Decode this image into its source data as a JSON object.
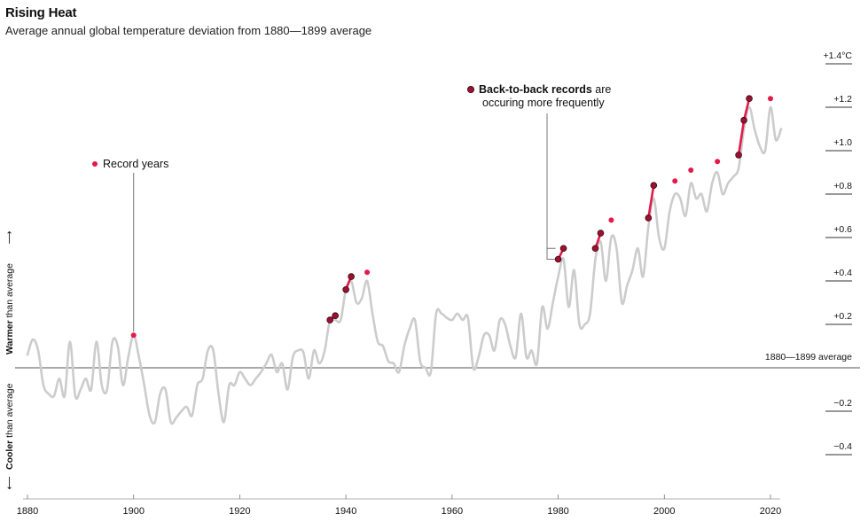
{
  "chart_data": {
    "type": "line",
    "title": "Rising Heat",
    "subtitle": "Average annual global temperature deviation from 1880—1899 average",
    "xlabel": "",
    "ylabel": "",
    "xlim": [
      1878,
      2024
    ],
    "ylim": [
      -0.55,
      1.45
    ],
    "x_ticks": [
      1880,
      1900,
      1920,
      1940,
      1960,
      1980,
      2000,
      2020
    ],
    "y_ticks": [
      {
        "value": 1.4,
        "label": "+1.4°C"
      },
      {
        "value": 1.2,
        "label": "+1.2"
      },
      {
        "value": 1.0,
        "label": "+1.0"
      },
      {
        "value": 0.8,
        "label": "+0.8"
      },
      {
        "value": 0.6,
        "label": "+0.6"
      },
      {
        "value": 0.4,
        "label": "+0.4"
      },
      {
        "value": 0.2,
        "label": "+0.2"
      },
      {
        "value": -0.2,
        "label": "−0.2"
      },
      {
        "value": -0.4,
        "label": "−0.4"
      }
    ],
    "baseline": {
      "value": 0,
      "label": "1880—1899 average"
    },
    "side_labels": {
      "warmer_bold": "Warmer",
      "warmer_rest": " than average",
      "cooler_bold": "Cooler",
      "cooler_rest": " than average"
    },
    "series": [
      {
        "x": [
          1880,
          1881,
          1882,
          1883,
          1884,
          1885,
          1886,
          1887,
          1888,
          1889,
          1890,
          1891,
          1892,
          1893,
          1894,
          1895,
          1896,
          1897,
          1898,
          1899,
          1900,
          1901,
          1902,
          1903,
          1904,
          1905,
          1906,
          1907,
          1908,
          1909,
          1910,
          1911,
          1912,
          1913,
          1914,
          1915,
          1916,
          1917,
          1918,
          1919,
          1920,
          1921,
          1922,
          1923,
          1924,
          1925,
          1926,
          1927,
          1928,
          1929,
          1930,
          1931,
          1932,
          1933,
          1934,
          1935,
          1936,
          1937,
          1938,
          1939,
          1940,
          1941,
          1942,
          1943,
          1944,
          1945,
          1946,
          1947,
          1948,
          1949,
          1950,
          1951,
          1952,
          1953,
          1954,
          1955,
          1956,
          1957,
          1958,
          1959,
          1960,
          1961,
          1962,
          1963,
          1964,
          1965,
          1966,
          1967,
          1968,
          1969,
          1970,
          1971,
          1972,
          1973,
          1974,
          1975,
          1976,
          1977,
          1978,
          1979,
          1980,
          1981,
          1982,
          1983,
          1984,
          1985,
          1986,
          1987,
          1988,
          1989,
          1990,
          1991,
          1992,
          1993,
          1994,
          1995,
          1996,
          1997,
          1998,
          1999,
          2000,
          2001,
          2002,
          2003,
          2004,
          2005,
          2006,
          2007,
          2008,
          2009,
          2010,
          2011,
          2012,
          2013,
          2014,
          2015,
          2016,
          2017,
          2018,
          2019,
          2020,
          2021,
          2022
        ],
        "values": [
          0.06,
          0.13,
          0.08,
          -0.08,
          -0.12,
          -0.13,
          -0.05,
          -0.13,
          0.12,
          -0.13,
          -0.1,
          -0.05,
          -0.1,
          0.12,
          -0.08,
          -0.1,
          0.12,
          0.1,
          -0.08,
          0.05,
          0.15,
          0.05,
          -0.08,
          -0.22,
          -0.25,
          -0.12,
          -0.1,
          -0.25,
          -0.23,
          -0.2,
          -0.18,
          -0.22,
          -0.08,
          -0.05,
          0.08,
          0.08,
          -0.12,
          -0.25,
          -0.08,
          -0.08,
          -0.02,
          -0.05,
          -0.08,
          -0.05,
          -0.02,
          0.02,
          0.06,
          -0.02,
          0.02,
          -0.1,
          0.05,
          0.08,
          0.07,
          -0.05,
          0.08,
          0.02,
          0.08,
          0.22,
          0.22,
          0.22,
          0.36,
          0.4,
          0.3,
          0.32,
          0.4,
          0.25,
          0.12,
          0.1,
          0.03,
          0.02,
          -0.02,
          0.1,
          0.18,
          0.22,
          0.03,
          0.0,
          -0.02,
          0.25,
          0.25,
          0.23,
          0.22,
          0.25,
          0.22,
          0.23,
          0.0,
          0.05,
          0.15,
          0.15,
          0.08,
          0.22,
          0.2,
          0.1,
          0.05,
          0.25,
          0.05,
          0.08,
          0.02,
          0.28,
          0.18,
          0.3,
          0.42,
          0.5,
          0.28,
          0.45,
          0.2,
          0.2,
          0.25,
          0.5,
          0.58,
          0.4,
          0.6,
          0.55,
          0.3,
          0.38,
          0.45,
          0.55,
          0.42,
          0.65,
          0.78,
          0.6,
          0.55,
          0.72,
          0.8,
          0.78,
          0.7,
          0.85,
          0.78,
          0.8,
          0.72,
          0.85,
          0.9,
          0.8,
          0.85,
          0.88,
          0.92,
          1.1,
          1.2,
          1.1,
          1.02,
          1.0,
          1.2,
          1.05,
          1.1
        ]
      }
    ],
    "record_years": [
      {
        "x": 1900,
        "y": 0.15,
        "streak": false
      },
      {
        "x": 1937,
        "y": 0.22,
        "streak": true
      },
      {
        "x": 1938,
        "y": 0.24,
        "streak": true
      },
      {
        "x": 1940,
        "y": 0.36,
        "streak": true
      },
      {
        "x": 1941,
        "y": 0.42,
        "streak": true
      },
      {
        "x": 1944,
        "y": 0.44,
        "streak": false
      },
      {
        "x": 1980,
        "y": 0.5,
        "streak": true
      },
      {
        "x": 1981,
        "y": 0.55,
        "streak": true
      },
      {
        "x": 1987,
        "y": 0.55,
        "streak": true
      },
      {
        "x": 1988,
        "y": 0.62,
        "streak": true
      },
      {
        "x": 1990,
        "y": 0.68,
        "streak": false
      },
      {
        "x": 1997,
        "y": 0.69,
        "streak": true
      },
      {
        "x": 1998,
        "y": 0.84,
        "streak": true
      },
      {
        "x": 2002,
        "y": 0.86,
        "streak": false
      },
      {
        "x": 2005,
        "y": 0.91,
        "streak": false
      },
      {
        "x": 2010,
        "y": 0.95,
        "streak": false
      },
      {
        "x": 2014,
        "y": 0.98,
        "streak": true
      },
      {
        "x": 2015,
        "y": 1.14,
        "streak": true
      },
      {
        "x": 2016,
        "y": 1.24,
        "streak": true
      },
      {
        "x": 2020,
        "y": 1.24,
        "streak": false
      }
    ],
    "streak_segments": [
      [
        1937,
        1938
      ],
      [
        1940,
        1941
      ],
      [
        1980,
        1981
      ],
      [
        1987,
        1988
      ],
      [
        1997,
        1998
      ],
      [
        2014,
        2015,
        2016
      ]
    ],
    "annotations": [
      {
        "id": "record",
        "text": "Record years",
        "x": 1900
      },
      {
        "id": "b2b",
        "bold": "Back-to-back records",
        "rest": " are",
        "line2": "occuring more frequently",
        "x": 1980
      }
    ],
    "colors": {
      "line": "#cccccc",
      "record": "#e31b4a",
      "streak_fill": "#9b1230",
      "streak_stroke": "#3a0510",
      "axis": "#555555"
    }
  }
}
